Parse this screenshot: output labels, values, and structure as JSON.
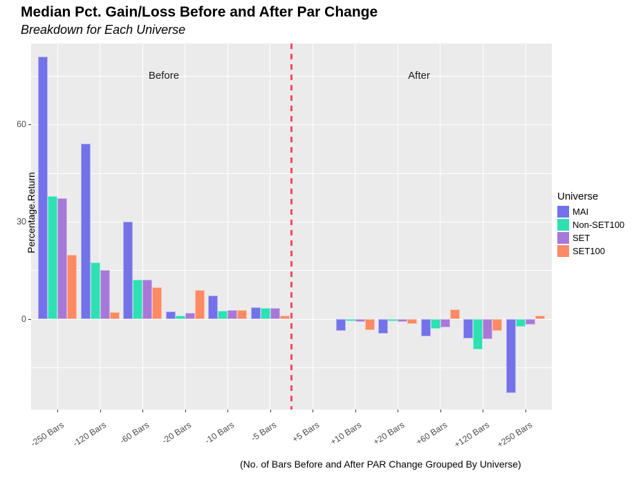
{
  "title": "Median Pct. Gain/Loss Before and After Par Change",
  "subtitle": "Breakdown for Each Universe",
  "caption": "(No. of Bars Before and After PAR Change Grouped By Universe)",
  "annotations": {
    "before_label": "Before",
    "after_label": "After"
  },
  "y_axis": {
    "title": "Percentage.Return",
    "tick_values": [
      0,
      30,
      60
    ],
    "minor_gridlines": [
      -15,
      15,
      45,
      75
    ]
  },
  "legend": {
    "title": "Universe",
    "position": "right",
    "items": [
      {
        "label": "MAI",
        "color": "#7472E8"
      },
      {
        "label": "Non-SET100",
        "color": "#2EE0B2"
      },
      {
        "label": "SET",
        "color": "#A878D8"
      },
      {
        "label": "SET100",
        "color": "#FB8A65"
      }
    ]
  },
  "divider": {
    "color": "#F8485E",
    "style": "dashed",
    "position_between": [
      "-5 Bars",
      "+5 Bars"
    ]
  },
  "colors": {
    "panel_background": "#EBEBEB",
    "gridline": "#FFFFFF",
    "axis_text": "#4D4D4D"
  },
  "chart_data": {
    "type": "bar",
    "layout": "grouped-dodge",
    "title": "Median Pct. Gain/Loss Before and After Par Change",
    "subtitle": "Breakdown for Each Universe",
    "xlabel": "(No. of Bars Before and After PAR Change Grouped By Universe)",
    "ylabel": "Percentage.Return",
    "ylim": [
      -28,
      85
    ],
    "y_major_ticks": [
      0,
      30,
      60
    ],
    "y_minor_gridlines": [
      -15,
      15,
      45,
      75
    ],
    "grid": true,
    "legend_position": "right",
    "categories": [
      "-250 Bars",
      "-120 Bars",
      "-60 Bars",
      "-20 Bars",
      "-10 Bars",
      "-5 Bars",
      "+5 Bars",
      "+10 Bars",
      "+20 Bars",
      "+60 Bars",
      "+120 Bars",
      "+250 Bars"
    ],
    "series": [
      {
        "name": "MAI",
        "color": "#7472E8",
        "values": [
          81.0,
          54.0,
          30.0,
          2.3,
          7.2,
          3.5,
          0,
          -3.8,
          -4.5,
          -5.5,
          -6.1,
          -22.8
        ]
      },
      {
        "name": "Non-SET100",
        "color": "#2EE0B2",
        "values": [
          37.8,
          17.4,
          12.0,
          1.0,
          2.4,
          3.3,
          0,
          -0.8,
          -0.8,
          -3.1,
          -9.5,
          -2.4
        ]
      },
      {
        "name": "SET",
        "color": "#A878D8",
        "values": [
          37.2,
          15.0,
          12.0,
          1.8,
          2.6,
          3.3,
          0,
          -1.0,
          -1.0,
          -2.6,
          -6.2,
          -1.8
        ]
      },
      {
        "name": "SET100",
        "color": "#FB8A65",
        "values": [
          19.8,
          2.1,
          9.8,
          8.9,
          2.6,
          0.9,
          0,
          -3.5,
          -1.6,
          3.0,
          -3.6,
          1.0
        ]
      }
    ],
    "annotations": [
      {
        "text": "Before",
        "x_fraction": 0.255,
        "y_value": 75
      },
      {
        "text": "After",
        "x_fraction": 0.745,
        "y_value": 75
      }
    ]
  }
}
